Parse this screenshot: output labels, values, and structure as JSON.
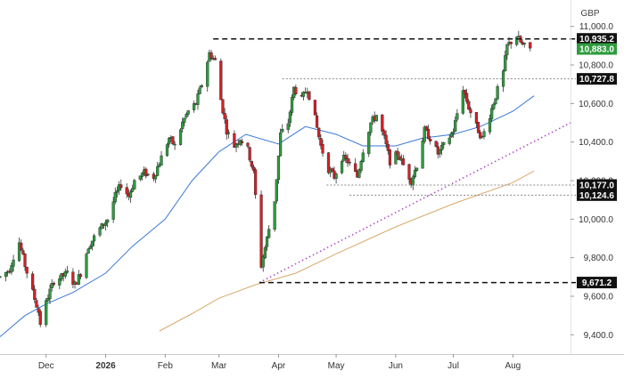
{
  "chart_data": {
    "type": "candlestick",
    "currency": "GBP",
    "ylim": [
      9300,
      11100
    ],
    "y_ticks": [
      {
        "value": 11000,
        "label": "11,000.0"
      },
      {
        "value": 10800,
        "label": "10,800.0"
      },
      {
        "value": 10600,
        "label": "10,600.0"
      },
      {
        "value": 10400,
        "label": "10,400.0"
      },
      {
        "value": 10200,
        "label": "10,200.0"
      },
      {
        "value": 10000,
        "label": "10,000.0"
      },
      {
        "value": 9800,
        "label": "9,800.0"
      },
      {
        "value": 9600,
        "label": "9,600.0"
      },
      {
        "value": 9400,
        "label": "9,400.0"
      }
    ],
    "x_ticks": [
      {
        "date": "2025-12-01",
        "label": "Dec",
        "bold": false
      },
      {
        "date": "2026-01-01",
        "label": "2026",
        "bold": true
      },
      {
        "date": "2026-02-01",
        "label": "Feb",
        "bold": false
      },
      {
        "date": "2026-03-01",
        "label": "Mar",
        "bold": false
      },
      {
        "date": "2026-04-01",
        "label": "Apr",
        "bold": false
      },
      {
        "date": "2026-05-01",
        "label": "May",
        "bold": false
      },
      {
        "date": "2026-06-01",
        "label": "Jun",
        "bold": false
      },
      {
        "date": "2026-07-01",
        "label": "Jul",
        "bold": false
      },
      {
        "date": "2026-08-01",
        "label": "Aug",
        "bold": false
      }
    ],
    "x_range": [
      "2025-11-07",
      "2026-08-31"
    ],
    "colors": {
      "up": "#2e9c3e",
      "down": "#d32027",
      "wick": "#333333",
      "ma50": "#3a78d8",
      "ma200": "#d9a96a",
      "trend": "#b040c8",
      "last_price": "#2e9c3e",
      "badge": "#111111"
    },
    "price_path": [
      [
        "2025-11-07",
        9700
      ],
      [
        "2025-11-12",
        9740
      ],
      [
        "2025-11-15",
        9840
      ],
      [
        "2025-11-17",
        9880
      ],
      [
        "2025-11-20",
        9760
      ],
      [
        "2025-11-24",
        9620
      ],
      [
        "2025-11-27",
        9520
      ],
      [
        "2025-11-28",
        9460
      ],
      [
        "2025-12-02",
        9600
      ],
      [
        "2025-12-05",
        9680
      ],
      [
        "2025-12-09",
        9700
      ],
      [
        "2025-12-12",
        9720
      ],
      [
        "2025-12-16",
        9660
      ],
      [
        "2025-12-19",
        9720
      ],
      [
        "2025-12-23",
        9860
      ],
      [
        "2025-12-29",
        9950
      ],
      [
        "2026-01-02",
        10000
      ],
      [
        "2026-01-06",
        10120
      ],
      [
        "2026-01-09",
        10180
      ],
      [
        "2026-01-13",
        10120
      ],
      [
        "2026-01-16",
        10200
      ],
      [
        "2026-01-21",
        10240
      ],
      [
        "2026-01-26",
        10220
      ],
      [
        "2026-01-30",
        10320
      ],
      [
        "2026-02-03",
        10420
      ],
      [
        "2026-02-06",
        10380
      ],
      [
        "2026-02-10",
        10500
      ],
      [
        "2026-02-13",
        10560
      ],
      [
        "2026-02-17",
        10600
      ],
      [
        "2026-02-20",
        10700
      ],
      [
        "2026-02-24",
        10860
      ],
      [
        "2026-02-27",
        10820
      ],
      [
        "2026-03-02",
        10620
      ],
      [
        "2026-03-05",
        10460
      ],
      [
        "2026-03-09",
        10380
      ],
      [
        "2026-03-12",
        10420
      ],
      [
        "2026-03-16",
        10360
      ],
      [
        "2026-03-19",
        10240
      ],
      [
        "2026-03-23",
        9760
      ],
      [
        "2026-03-26",
        9900
      ],
      [
        "2026-03-30",
        10100
      ],
      [
        "2026-04-02",
        10440
      ],
      [
        "2026-04-06",
        10500
      ],
      [
        "2026-04-09",
        10680
      ],
      [
        "2026-04-13",
        10620
      ],
      [
        "2026-04-16",
        10680
      ],
      [
        "2026-04-20",
        10520
      ],
      [
        "2026-04-23",
        10380
      ],
      [
        "2026-04-27",
        10260
      ],
      [
        "2026-04-30",
        10220
      ],
      [
        "2026-05-04",
        10320
      ],
      [
        "2026-05-07",
        10300
      ],
      [
        "2026-05-12",
        10220
      ],
      [
        "2026-05-15",
        10360
      ],
      [
        "2026-05-19",
        10500
      ],
      [
        "2026-05-22",
        10540
      ],
      [
        "2026-05-26",
        10420
      ],
      [
        "2026-05-29",
        10300
      ],
      [
        "2026-06-02",
        10340
      ],
      [
        "2026-06-05",
        10280
      ],
      [
        "2026-06-09",
        10200
      ],
      [
        "2026-06-12",
        10280
      ],
      [
        "2026-06-16",
        10460
      ],
      [
        "2026-06-19",
        10420
      ],
      [
        "2026-06-23",
        10340
      ],
      [
        "2026-06-26",
        10380
      ],
      [
        "2026-07-01",
        10460
      ],
      [
        "2026-07-06",
        10680
      ],
      [
        "2026-07-09",
        10580
      ],
      [
        "2026-07-13",
        10480
      ],
      [
        "2026-07-16",
        10420
      ],
      [
        "2026-07-20",
        10540
      ],
      [
        "2026-07-23",
        10640
      ],
      [
        "2026-07-27",
        10760
      ],
      [
        "2026-07-29",
        10900
      ],
      [
        "2026-08-03",
        10950
      ],
      [
        "2026-08-06",
        10900
      ],
      [
        "2026-08-10",
        10883
      ]
    ],
    "ma50": [
      [
        "2025-11-07",
        9390
      ],
      [
        "2025-11-20",
        9500
      ],
      [
        "2025-12-01",
        9560
      ],
      [
        "2025-12-15",
        9620
      ],
      [
        "2026-01-01",
        9720
      ],
      [
        "2026-01-15",
        9860
      ],
      [
        "2026-02-01",
        10000
      ],
      [
        "2026-02-15",
        10200
      ],
      [
        "2026-03-01",
        10350
      ],
      [
        "2026-03-15",
        10440
      ],
      [
        "2026-04-01",
        10390
      ],
      [
        "2026-04-15",
        10480
      ],
      [
        "2026-05-01",
        10440
      ],
      [
        "2026-05-15",
        10380
      ],
      [
        "2026-06-01",
        10380
      ],
      [
        "2026-06-15",
        10420
      ],
      [
        "2026-07-01",
        10440
      ],
      [
        "2026-07-15",
        10480
      ],
      [
        "2026-08-01",
        10560
      ],
      [
        "2026-08-12",
        10640
      ]
    ],
    "ma200": [
      [
        "2026-01-29",
        9420
      ],
      [
        "2026-02-15",
        9510
      ],
      [
        "2026-03-01",
        9590
      ],
      [
        "2026-03-20",
        9660
      ],
      [
        "2026-04-10",
        9720
      ],
      [
        "2026-05-01",
        9820
      ],
      [
        "2026-06-01",
        9960
      ],
      [
        "2026-07-01",
        10080
      ],
      [
        "2026-08-01",
        10190
      ],
      [
        "2026-08-12",
        10250
      ]
    ],
    "trendline": [
      [
        "2026-03-22",
        9671.2
      ],
      [
        "2026-08-31",
        10500
      ]
    ],
    "levels": [
      {
        "value": 10935.2,
        "label": "10,935.2",
        "from": "2026-02-26",
        "style": "dashed-heavy"
      },
      {
        "value": 10883.0,
        "label": "10,883.0",
        "from": null,
        "style": "last-price"
      },
      {
        "value": 10727.8,
        "label": "10,727.8",
        "from": "2026-04-03",
        "style": "dotted"
      },
      {
        "value": 10177.0,
        "label": "10,177.0",
        "from": "2026-04-26",
        "style": "dotted"
      },
      {
        "value": 10124.6,
        "label": "10,124.6",
        "from": "2026-05-08",
        "style": "dotted"
      },
      {
        "value": 9671.2,
        "label": "9,671.2",
        "from": "2026-03-22",
        "style": "dashed-heavy"
      }
    ]
  }
}
